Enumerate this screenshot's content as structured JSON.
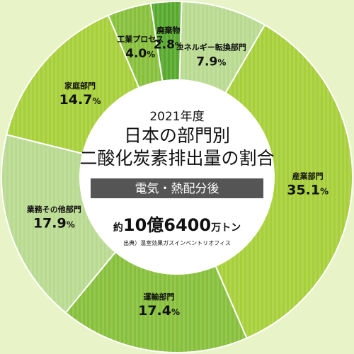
{
  "center": {
    "year": "2021年度",
    "title_line1": "日本の部門別",
    "title_line2": "二酸化炭素排出量の割合",
    "band": "電気・熱配分後",
    "total_prefix": "約",
    "total_value": "10億6400",
    "total_unit": "万トン",
    "source": "出典）温室効果ガスインベントリオフィス"
  },
  "colors": {
    "background": "#e9f3c8",
    "hole": "#ffffff",
    "band": "#555555",
    "pale": "#b8da90",
    "lime": "#a6cf38",
    "mid": "#86bf3a",
    "dark": "#56a82c"
  },
  "chart_data": {
    "type": "pie",
    "unit": "%",
    "slices": [
      {
        "name": "エネルギー転換部門",
        "value": 7.9,
        "color": "#b8da90",
        "text": "7.9"
      },
      {
        "name": "産業部門",
        "value": 35.1,
        "color": "#a6cf38",
        "text": "35.1"
      },
      {
        "name": "運輸部門",
        "value": 17.4,
        "color": "#86bf3a",
        "text": "17.4"
      },
      {
        "name": "業務その他部門",
        "value": 17.9,
        "color": "#b8da90",
        "text": "17.9"
      },
      {
        "name": "家庭部門",
        "value": 14.7,
        "color": "#a6cf38",
        "text": "14.7"
      },
      {
        "name": "工業プロセス",
        "value": 4.0,
        "color": "#86bf3a",
        "text": "4.0"
      },
      {
        "name": "廃棄物",
        "value": 2.8,
        "color": "#56a82c",
        "text": "2.8"
      }
    ]
  }
}
